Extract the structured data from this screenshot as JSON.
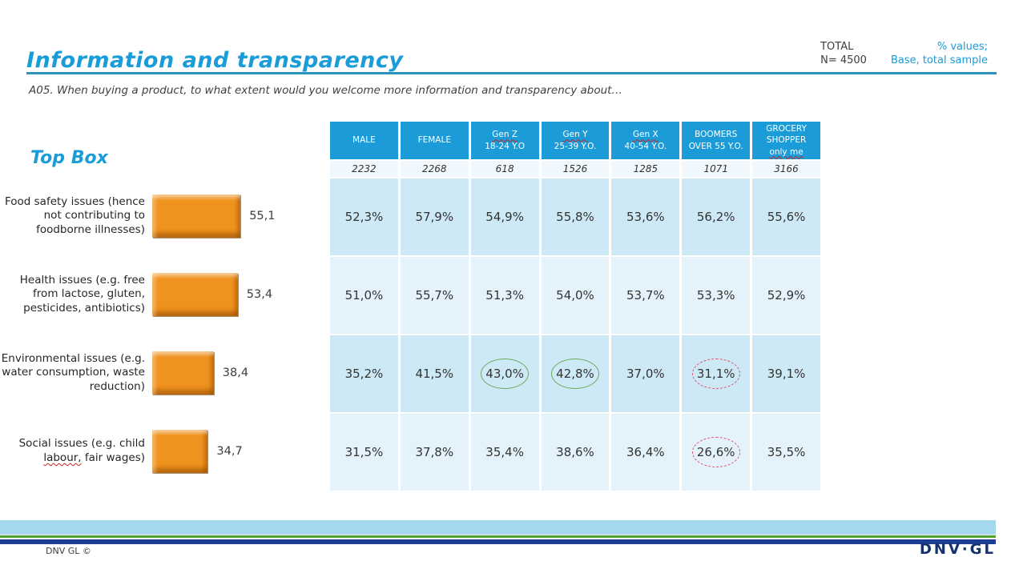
{
  "slide": {
    "title": "Information and transparency",
    "subtitle": "A05. When buying a product, to what extent would you welcome more information and transparency about…",
    "total_label": "TOTAL",
    "total_n": "N= 4500",
    "values_note": "% values;",
    "base_note": "Base, total sample"
  },
  "chart_data": {
    "type": "bar",
    "orientation": "horizontal",
    "title": "Top Box",
    "categories": [
      "Food safety issues (hence\nnot contributing to\nfoodborne illnesses)",
      "Health issues (e.g. free\nfrom lactose, gluten,\npesticides, antibiotics)",
      "Environmental issues (e.g.\nwater consumption, waste\nreduction)",
      "Social issues (e.g. child\nlabour, fair wages)"
    ],
    "values": [
      55.1,
      53.4,
      38.4,
      34.7
    ],
    "value_labels": [
      "55,1",
      "53,4",
      "38,4",
      "34,7"
    ],
    "wavy_words": [
      "",
      "",
      "",
      "labour,"
    ],
    "xlim": [
      0,
      60
    ],
    "bar_color": "#F0921E",
    "legend": false,
    "grid": false
  },
  "table": {
    "columns": [
      {
        "line1": "MALE",
        "line2": "",
        "wavy1": false,
        "wavy2": false
      },
      {
        "line1": "FEMALE",
        "line2": "",
        "wavy1": false,
        "wavy2": false
      },
      {
        "line1": "Gen Z",
        "line2": "18-24 Y.O",
        "wavy1": true,
        "wavy2": false
      },
      {
        "line1": "Gen Y",
        "line2": "25-39 Y.O.",
        "wavy1": true,
        "wavy2": false
      },
      {
        "line1": "Gen X",
        "line2": "40-54 Y.O.",
        "wavy1": true,
        "wavy2": false
      },
      {
        "line1": "BOOMERS",
        "line2": "OVER 55 Y.O.",
        "wavy1": false,
        "wavy2": false
      },
      {
        "line1": "GROCERY SHOPPER",
        "line2": "only me",
        "wavy1": false,
        "wavy2": true
      }
    ],
    "base_row": [
      "2232",
      "2268",
      "618",
      "1526",
      "1285",
      "1071",
      "3166"
    ],
    "rows": [
      {
        "values": [
          "52,3%",
          "57,9%",
          "54,9%",
          "55,8%",
          "53,6%",
          "56,2%",
          "55,6%"
        ],
        "flags": [
          null,
          null,
          null,
          null,
          null,
          null,
          null
        ]
      },
      {
        "values": [
          "51,0%",
          "55,7%",
          "51,3%",
          "54,0%",
          "53,7%",
          "53,3%",
          "52,9%"
        ],
        "flags": [
          null,
          null,
          null,
          null,
          null,
          null,
          null
        ]
      },
      {
        "values": [
          "35,2%",
          "41,5%",
          "43,0%",
          "42,8%",
          "37,0%",
          "31,1%",
          "39,1%"
        ],
        "flags": [
          null,
          null,
          "green",
          "green",
          null,
          "red",
          null
        ]
      },
      {
        "values": [
          "31,5%",
          "37,8%",
          "35,4%",
          "38,6%",
          "36,4%",
          "26,6%",
          "35,5%"
        ],
        "flags": [
          null,
          null,
          null,
          null,
          null,
          "red",
          null
        ]
      }
    ]
  },
  "footer": {
    "copyright": "DNV GL ©",
    "logo": "DNV·GL"
  },
  "colors": {
    "accent_cyan": "#1A9CD8",
    "header_blue": "#1B9CD9",
    "row_light": "#CDE9F6",
    "row_lighter": "#E4F3FB",
    "bar_orange": "#F0921E",
    "band_blue": "#A6D8EE",
    "band_green": "#4FA32D",
    "band_navy": "#1C3F94",
    "circle_green": "#6FA95C",
    "circle_red": "#E2506A"
  }
}
